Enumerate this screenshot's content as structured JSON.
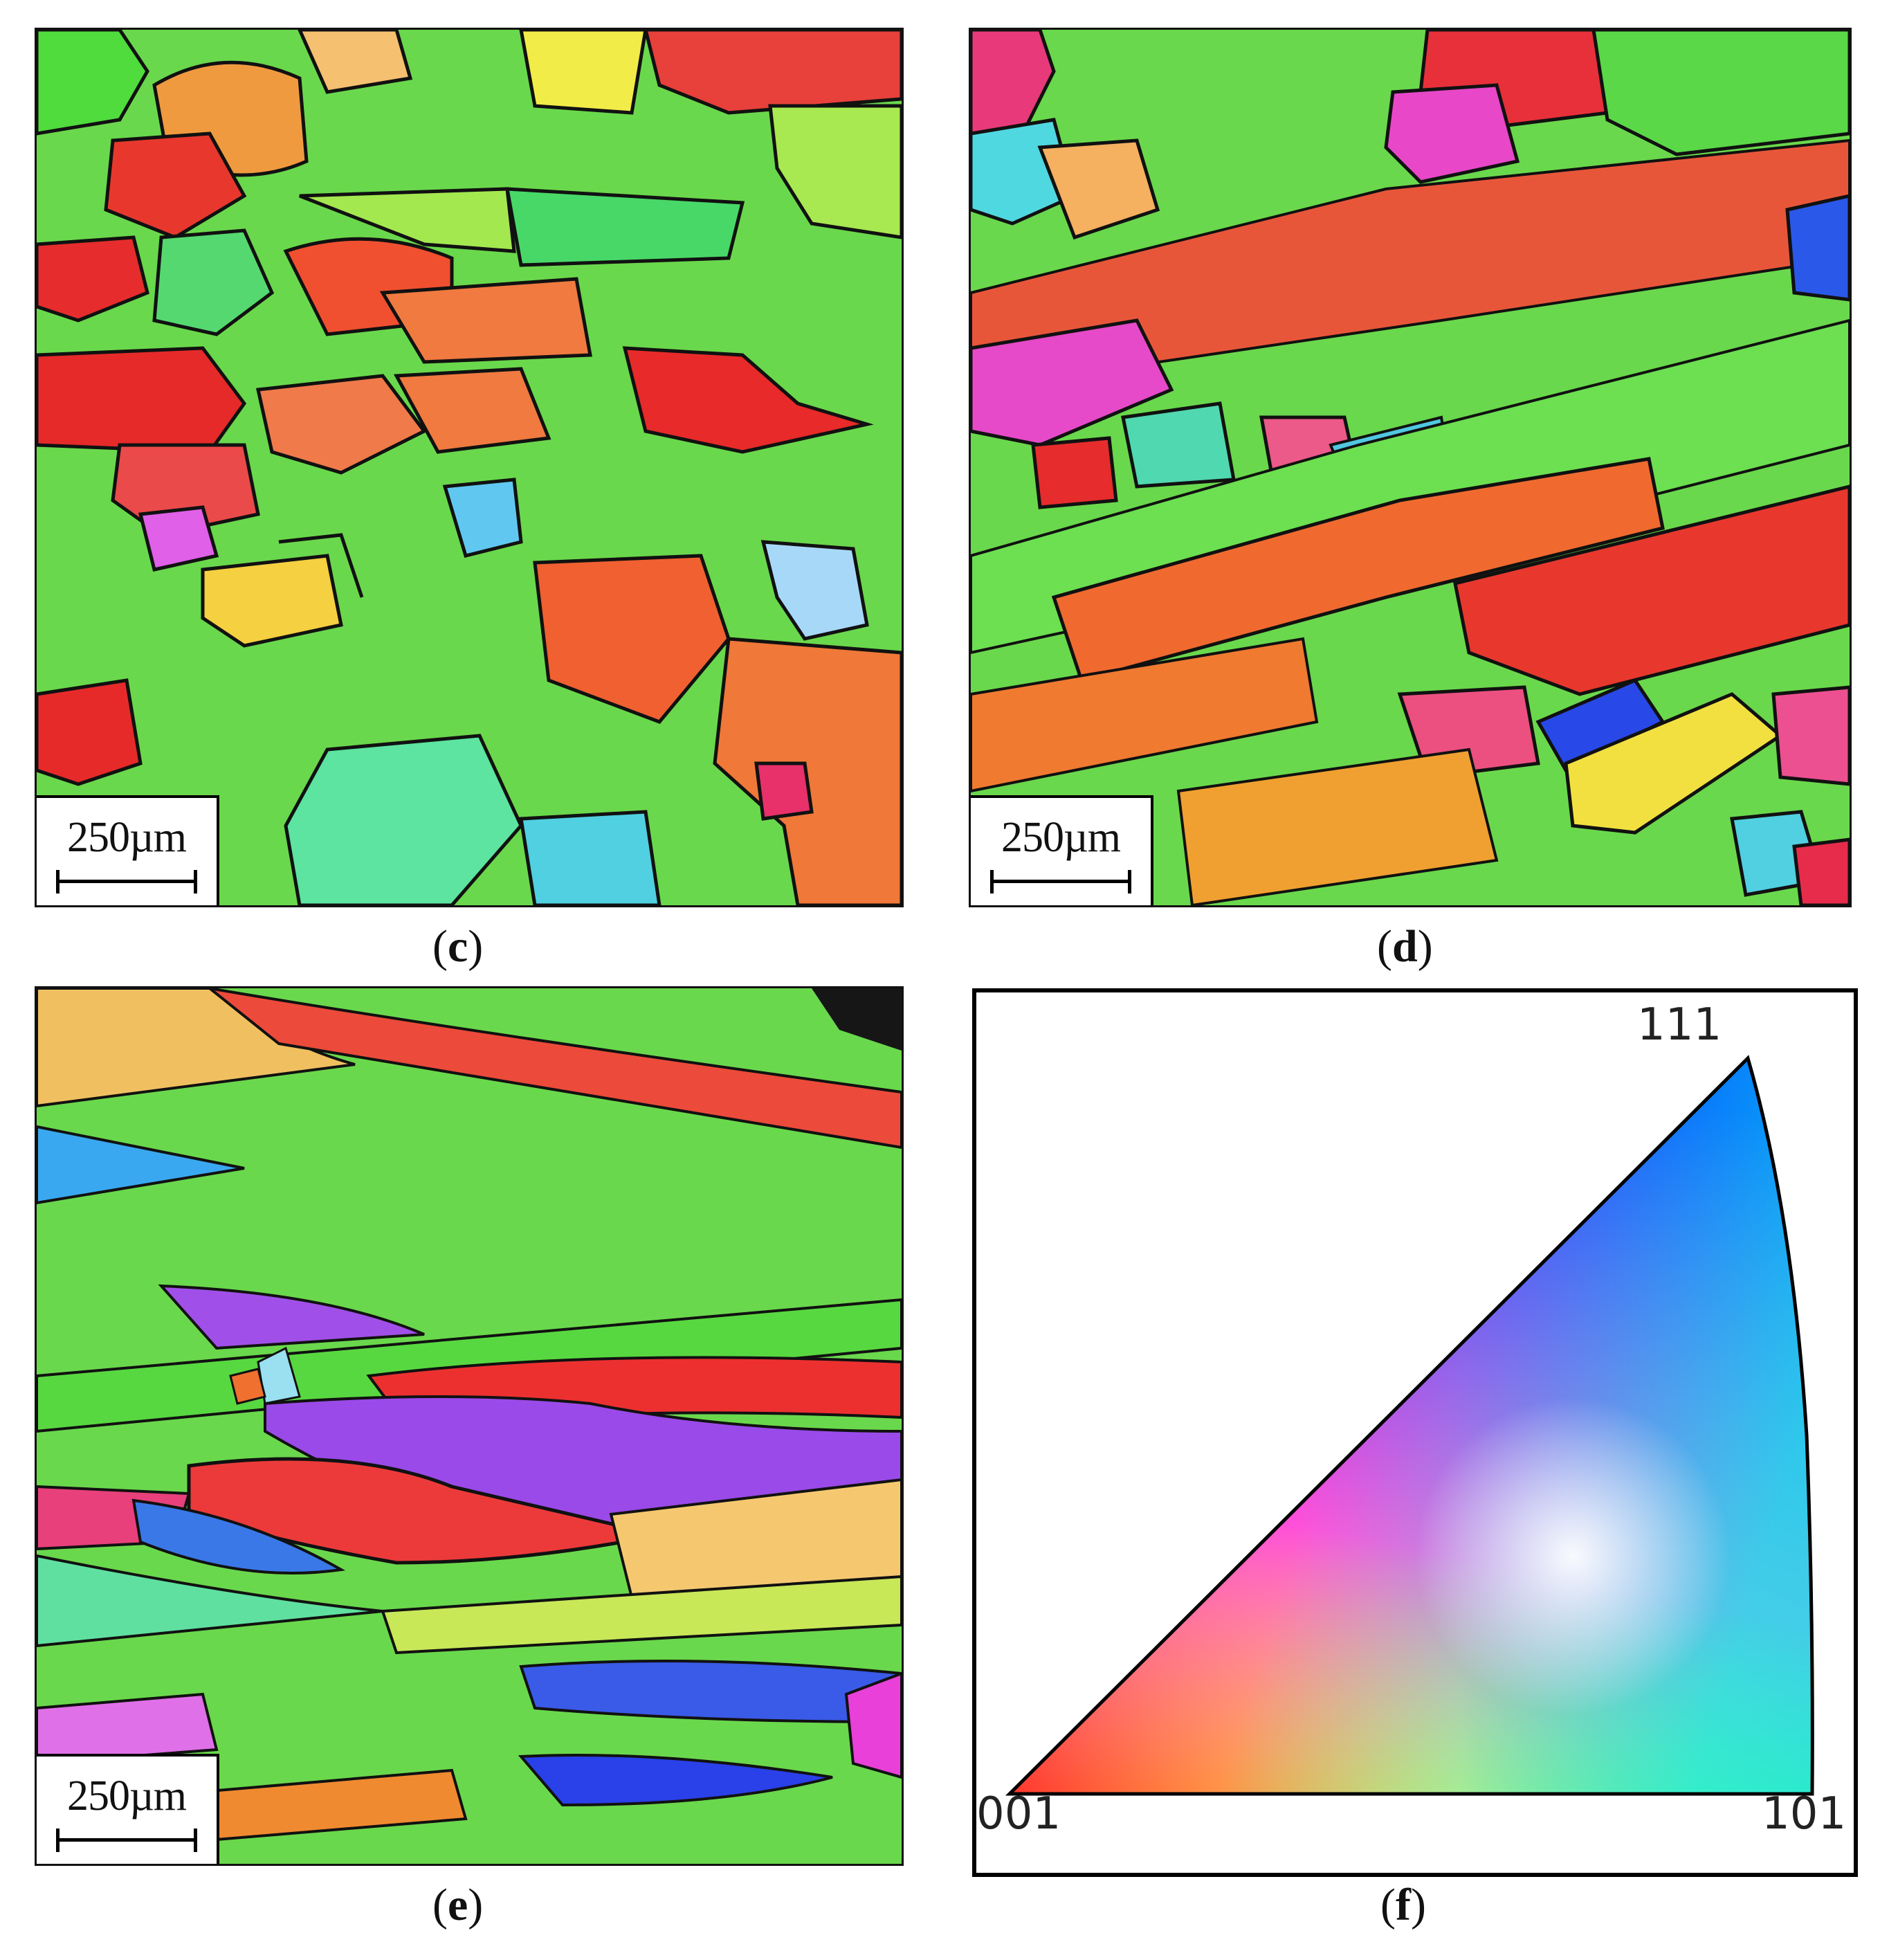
{
  "panels": {
    "c": {
      "caption_open": "(",
      "caption_letter": "c",
      "caption_close": ")",
      "scale_label": "250µm"
    },
    "d": {
      "caption_open": "(",
      "caption_letter": "d",
      "caption_close": ")",
      "scale_label": "250µm"
    },
    "e": {
      "caption_open": "(",
      "caption_letter": "e",
      "caption_close": ")",
      "scale_label": "250µm"
    },
    "f": {
      "caption_open": "(",
      "caption_letter": "f",
      "caption_close": ")"
    }
  },
  "ipf_key": {
    "label_top": "111",
    "label_left": "001",
    "label_right": "101"
  },
  "colors": {
    "red": "#e8302a",
    "orange": "#f07a35",
    "green": "#5be03a",
    "yellow": "#f2e44a",
    "blue": "#2a4ef0",
    "magenta": "#e640d8",
    "cyan": "#40d8e8",
    "boundary": "#111111"
  }
}
